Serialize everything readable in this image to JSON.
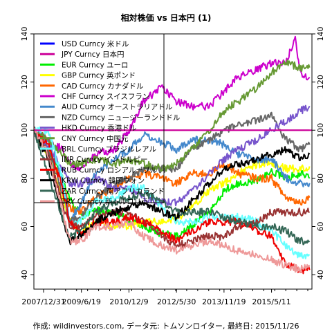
{
  "chart_data": {
    "type": "line",
    "title": "相対株価 vs 日本円 (1)",
    "caption": "作成: wildinvestors.com, データ元: トムソンロイター, 最終日: 2015/11/26",
    "xlabel": "",
    "ylabel": "",
    "ylim": [
      34,
      140
    ],
    "y_ticks": [
      40,
      60,
      80,
      100,
      120,
      140
    ],
    "x_ticks": [
      "2007/12/31",
      "2009/6/19",
      "2010/12/9",
      "2012/5/30",
      "2013/11/19",
      "2015/5/11"
    ],
    "x_tick_values": [
      0,
      1,
      2,
      3,
      4,
      5
    ],
    "reference_line": 100,
    "legend_position": "top-left",
    "series": [
      {
        "name": "USD Curncy 米ドル",
        "color": "#0000ff",
        "x": [
          0,
          0.5,
          0.75,
          1,
          1.5,
          2,
          2.5,
          3,
          3.5,
          4,
          4.5,
          5,
          5.5
        ],
        "values": [
          null,
          null,
          null,
          null,
          null,
          null,
          null,
          null,
          null,
          null,
          null,
          null,
          null
        ]
      },
      {
        "name": "JPY Curncy 日本円",
        "color": "#cc0099",
        "x": [
          0,
          5.8
        ],
        "values": [
          100,
          100
        ]
      },
      {
        "name": "EUR Curncy ユーロ",
        "color": "#00ee00",
        "x": [
          0,
          0.3,
          0.6,
          0.75,
          1,
          1.3,
          1.7,
          2,
          2.3,
          2.7,
          3,
          3.3,
          3.7,
          4,
          4.3,
          4.7,
          5,
          5.3,
          5.6,
          5.8
        ],
        "values": [
          100,
          92,
          80,
          72,
          64,
          67,
          65,
          63,
          60,
          57,
          56,
          60,
          66,
          75,
          78,
          79,
          83,
          80,
          82,
          80
        ]
      },
      {
        "name": "GBP Curncy 英ポンド",
        "color": "#ffff00",
        "x": [
          0,
          0.3,
          0.6,
          0.75,
          1,
          1.3,
          1.7,
          2,
          2.3,
          2.7,
          3,
          3.3,
          3.7,
          4,
          4.3,
          4.7,
          5,
          5.3,
          5.6,
          5.8
        ],
        "values": [
          100,
          90,
          72,
          62,
          58,
          62,
          60,
          60,
          62,
          62,
          63,
          68,
          75,
          78,
          82,
          86,
          86,
          84,
          84,
          85
        ]
      },
      {
        "name": "CAD Curncy カナダドル",
        "color": "#ff6600",
        "x": [
          0,
          0.3,
          0.6,
          0.75,
          1,
          1.3,
          1.7,
          2,
          2.3,
          2.7,
          3,
          3.3,
          3.7,
          4,
          4.3,
          4.7,
          5,
          5.3,
          5.6,
          5.8
        ],
        "values": [
          100,
          92,
          78,
          68,
          66,
          72,
          76,
          80,
          82,
          80,
          78,
          82,
          82,
          86,
          82,
          80,
          80,
          72,
          70,
          72
        ]
      },
      {
        "name": "CHF Curncy スイスフラン",
        "color": "#cc00cc",
        "x": [
          0,
          0.3,
          0.6,
          0.75,
          1,
          1.3,
          1.7,
          2,
          2.3,
          2.7,
          3,
          3.3,
          3.7,
          4,
          4.3,
          4.7,
          5,
          5.3,
          5.5,
          5.6,
          5.8
        ],
        "values": [
          100,
          96,
          92,
          86,
          84,
          90,
          92,
          100,
          112,
          118,
          112,
          110,
          110,
          116,
          122,
          125,
          128,
          128,
          138,
          124,
          122
        ]
      },
      {
        "name": "AUD Curncy オーストラリアドル",
        "color": "#4488cc",
        "x": [
          0,
          0.3,
          0.6,
          0.75,
          1,
          1.3,
          1.7,
          2,
          2.3,
          2.7,
          3,
          3.3,
          3.7,
          4,
          4.3,
          4.7,
          5,
          5.3,
          5.6,
          5.8
        ],
        "values": [
          100,
          96,
          80,
          62,
          70,
          82,
          88,
          92,
          98,
          95,
          92,
          96,
          96,
          94,
          90,
          88,
          88,
          80,
          78,
          78
        ]
      },
      {
        "name": "NZD Curncy ニュージーランドドル",
        "color": "#666666",
        "x": [
          0,
          0.3,
          0.6,
          0.75,
          1,
          1.3,
          1.7,
          2,
          2.3,
          2.7,
          3,
          3.3,
          3.7,
          4,
          4.3,
          4.7,
          5,
          5.3,
          5.6,
          5.8
        ],
        "values": [
          100,
          92,
          74,
          62,
          64,
          72,
          78,
          80,
          84,
          84,
          84,
          92,
          96,
          100,
          102,
          104,
          106,
          96,
          92,
          94
        ]
      },
      {
        "name": "HKD Curncy 香港ドル",
        "color": "#7755cc",
        "x": [
          0,
          0.3,
          0.6,
          0.75,
          1,
          1.3,
          1.7,
          2,
          2.3,
          2.7,
          3,
          3.3,
          3.7,
          4,
          4.3,
          4.7,
          5,
          5.3,
          5.6,
          5.8
        ],
        "values": [
          100,
          94,
          84,
          78,
          78,
          80,
          76,
          76,
          72,
          70,
          70,
          74,
          82,
          88,
          92,
          96,
          100,
          104,
          108,
          110
        ]
      },
      {
        "name": "CNY Curncy 中国元",
        "color": "#669933",
        "x": [
          0,
          0.3,
          0.6,
          0.75,
          1,
          1.3,
          1.7,
          2,
          2.3,
          2.7,
          3,
          3.3,
          3.7,
          4,
          4.3,
          4.7,
          5,
          5.3,
          5.6,
          5.8
        ],
        "values": [
          100,
          96,
          90,
          86,
          86,
          88,
          86,
          88,
          86,
          84,
          86,
          92,
          100,
          108,
          112,
          118,
          124,
          128,
          126,
          126
        ]
      },
      {
        "name": "BRL Curncy ブラジルレアル",
        "color": "#66ffff",
        "x": [
          0,
          0.3,
          0.6,
          0.75,
          1,
          1.3,
          1.7,
          2,
          2.3,
          2.7,
          3,
          3.3,
          3.7,
          4,
          4.3,
          4.7,
          5,
          5.3,
          5.6,
          5.8
        ],
        "values": [
          100,
          100,
          80,
          60,
          62,
          70,
          72,
          76,
          76,
          68,
          62,
          62,
          64,
          64,
          64,
          62,
          58,
          52,
          48,
          48
        ]
      },
      {
        "name": "INR Curncy インドルピー",
        "color": "#993333",
        "x": [
          0,
          0.3,
          0.6,
          0.75,
          1,
          1.3,
          1.7,
          2,
          2.3,
          2.7,
          3,
          3.3,
          3.7,
          4,
          4.3,
          4.7,
          5,
          5.3,
          5.6,
          5.8
        ],
        "values": [
          100,
          90,
          70,
          60,
          60,
          64,
          66,
          66,
          62,
          56,
          52,
          54,
          56,
          56,
          60,
          62,
          66,
          66,
          66,
          66
        ]
      },
      {
        "name": "RUB Curncy ロシアルーブル",
        "color": "#ee0000",
        "x": [
          0,
          0.3,
          0.6,
          0.75,
          1,
          1.3,
          1.7,
          2,
          2.3,
          2.7,
          3,
          3.3,
          3.7,
          4,
          4.3,
          4.7,
          5,
          5.3,
          5.6,
          5.8
        ],
        "values": [
          100,
          94,
          76,
          62,
          56,
          62,
          62,
          64,
          62,
          58,
          54,
          58,
          62,
          62,
          62,
          58,
          56,
          44,
          42,
          42
        ]
      },
      {
        "name": "KRW Curncy 韓国ウォン",
        "color": "#000000",
        "x": [
          0,
          0.3,
          0.6,
          0.75,
          1,
          1.3,
          1.7,
          2,
          2.3,
          2.7,
          3,
          3.3,
          3.7,
          4,
          4.3,
          4.7,
          5,
          5.3,
          5.6,
          5.8
        ],
        "values": [
          100,
          88,
          64,
          54,
          56,
          62,
          66,
          68,
          70,
          66,
          64,
          70,
          78,
          84,
          86,
          88,
          90,
          92,
          88,
          90
        ]
      },
      {
        "name": "ZAR Curncy 南アフリカランド",
        "color": "#336655",
        "x": [
          0,
          0.3,
          0.6,
          0.75,
          1,
          1.3,
          1.7,
          2,
          2.3,
          2.7,
          3,
          3.3,
          3.7,
          4,
          4.3,
          4.7,
          5,
          5.3,
          5.6,
          5.8
        ],
        "values": [
          100,
          82,
          64,
          56,
          58,
          66,
          70,
          72,
          74,
          70,
          66,
          66,
          66,
          64,
          62,
          60,
          60,
          58,
          54,
          54
        ]
      },
      {
        "name": "TRY Curncy 新トルコリラ",
        "color": "#ee9999",
        "x": [
          0,
          0.3,
          0.6,
          0.75,
          1,
          1.3,
          1.7,
          2,
          2.3,
          2.7,
          3,
          3.3,
          3.7,
          4,
          4.3,
          4.7,
          5,
          5.3,
          5.6,
          5.8
        ],
        "values": [
          100,
          90,
          66,
          54,
          54,
          60,
          60,
          62,
          56,
          52,
          50,
          52,
          54,
          52,
          50,
          48,
          46,
          44,
          42,
          44
        ]
      }
    ]
  }
}
